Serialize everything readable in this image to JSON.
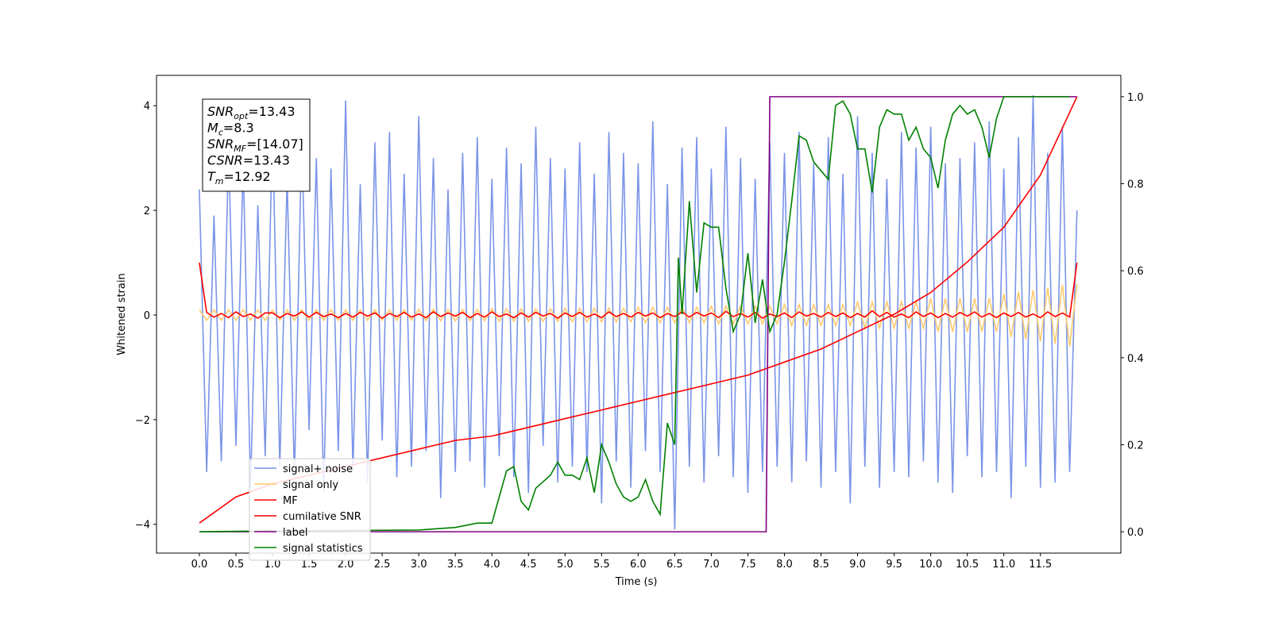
{
  "chart_data": {
    "type": "line",
    "xlabel": "Time (s)",
    "ylabel": "Whitened strain",
    "xlim": [
      -0.586,
      12.6
    ],
    "ylim": [
      -4.55,
      4.58
    ],
    "y2lim": [
      -0.049,
      1.049
    ],
    "xticks": [
      {
        "value": 0,
        "label": "0.0"
      },
      0.5,
      {
        "value": 1,
        "label": "1.0"
      },
      1.5,
      {
        "value": 2,
        "label": "2.0"
      },
      2.5,
      {
        "value": 3,
        "label": "3.0"
      },
      3.5,
      {
        "value": 4,
        "label": "4.0"
      },
      4.5,
      {
        "value": 5,
        "label": "5.0"
      },
      5.5,
      {
        "value": 6,
        "label": "6.0"
      },
      6.5,
      {
        "value": 7,
        "label": "7.0"
      },
      7.5,
      {
        "value": 8,
        "label": "8.0"
      },
      8.5,
      {
        "value": 9,
        "label": "9.0"
      },
      9.5,
      {
        "value": 10,
        "label": "10.0"
      },
      10.5,
      {
        "value": 11,
        "label": "11.0"
      },
      11.5
    ],
    "yticks": [
      {
        "value": -4,
        "label": "−4"
      },
      {
        "value": -2,
        "label": "−2"
      },
      0,
      2,
      4
    ],
    "y2ticks": [
      {
        "value": 0,
        "label": "0.0"
      },
      0.2,
      0.4,
      0.6,
      0.8,
      {
        "value": 1,
        "label": "1.0"
      }
    ],
    "legend": "lower left",
    "annotation": [
      {
        "base": "SNR",
        "sub": "opt",
        "rest": "=13.43"
      },
      {
        "base": "M",
        "sub": "c",
        "rest": "=8.3"
      },
      {
        "base": "SNR",
        "sub": "MF",
        "rest": "=[14.07]"
      },
      {
        "base": "CSNR",
        "rest": "=13.43"
      },
      {
        "base": "T",
        "sub": "m",
        "rest": "=12.92"
      }
    ],
    "x": [
      0,
      0.1,
      0.2,
      0.3,
      0.4,
      0.5,
      0.6,
      0.7,
      0.8,
      0.9,
      1,
      1.1,
      1.2,
      1.3,
      1.4,
      1.5,
      1.6,
      1.7,
      1.8,
      1.9,
      2,
      2.1,
      2.2,
      2.3,
      2.4,
      2.5,
      2.6,
      2.7,
      2.8,
      2.9,
      3,
      3.1,
      3.2,
      3.3,
      3.4,
      3.5,
      3.6,
      3.7,
      3.8,
      3.9,
      4,
      4.1,
      4.2,
      4.3,
      4.4,
      4.5,
      4.6,
      4.7,
      4.8,
      4.9,
      5,
      5.1,
      5.2,
      5.3,
      5.4,
      5.5,
      5.6,
      5.7,
      5.8,
      5.9,
      6,
      6.1,
      6.2,
      6.3,
      6.4,
      6.5,
      6.6,
      6.7,
      6.8,
      6.9,
      7,
      7.1,
      7.2,
      7.3,
      7.4,
      7.5,
      7.6,
      7.7,
      7.8,
      7.9,
      8,
      8.1,
      8.2,
      8.3,
      8.4,
      8.5,
      8.6,
      8.7,
      8.8,
      8.9,
      9,
      9.1,
      9.2,
      9.3,
      9.4,
      9.5,
      9.6,
      9.7,
      9.8,
      9.9,
      10,
      10.1,
      10.2,
      10.3,
      10.4,
      10.5,
      10.6,
      10.7,
      10.8,
      10.9,
      11,
      11.1,
      11.2,
      11.3,
      11.4,
      11.5,
      11.6,
      11.7,
      11.8,
      11.9,
      12
    ],
    "series": [
      {
        "name": "signal+ noise",
        "color": "#7a94e8",
        "values": [
          2.4,
          -3.0,
          1.9,
          -2.8,
          3.2,
          -2.5,
          2.9,
          -3.3,
          2.1,
          -2.7,
          3.6,
          -2.9,
          2.6,
          -3.1,
          3.4,
          -2.2,
          3.0,
          -3.4,
          2.8,
          -2.6,
          4.1,
          -3.0,
          2.5,
          -3.2,
          3.3,
          -2.4,
          3.5,
          -3.1,
          2.7,
          -2.9,
          3.8,
          -2.6,
          3.0,
          -3.5,
          2.4,
          -3.0,
          3.1,
          -2.8,
          3.4,
          -3.3,
          2.6,
          -2.7,
          3.2,
          -3.1,
          2.9,
          -3.4,
          3.6,
          -2.5,
          3.0,
          -3.2,
          2.8,
          -2.9,
          3.3,
          -3.0,
          2.7,
          -3.6,
          3.5,
          -2.8,
          3.1,
          -3.3,
          2.9,
          -2.6,
          3.7,
          -3.0,
          2.5,
          -4.1,
          3.2,
          -2.9,
          3.4,
          -3.2,
          2.8,
          -2.7,
          3.6,
          -3.1,
          3.0,
          -3.4,
          2.6,
          -3.0,
          3.3,
          -2.9,
          3.1,
          -3.2,
          3.5,
          -2.8,
          2.9,
          -3.3,
          3.4,
          -3.0,
          2.7,
          -3.6,
          3.8,
          -2.9,
          3.1,
          -3.3,
          2.6,
          -3.0,
          3.5,
          -3.1,
          3.2,
          -2.8,
          3.6,
          -3.2,
          2.9,
          -3.4,
          3.0,
          -2.7,
          3.3,
          -3.1,
          3.7,
          -3.0,
          2.8,
          -3.5,
          3.4,
          -2.9,
          4.2,
          -3.3,
          3.1,
          -3.2,
          3.6,
          -3.0,
          2.0
        ]
      },
      {
        "name": "signal only",
        "color": "#ffca6e",
        "values": [
          0.1,
          -0.1,
          0.1,
          -0.1,
          0.1,
          -0.1,
          0.1,
          -0.1,
          0.1,
          -0.1,
          0.1,
          -0.1,
          0.1,
          -0.1,
          0.1,
          -0.1,
          0.1,
          -0.1,
          0.1,
          -0.1,
          0.1,
          -0.1,
          0.1,
          -0.1,
          0.1,
          -0.1,
          0.1,
          -0.1,
          0.1,
          -0.1,
          0.11,
          -0.11,
          0.11,
          -0.11,
          0.11,
          -0.11,
          0.11,
          -0.11,
          0.11,
          -0.11,
          0.12,
          -0.12,
          0.12,
          -0.12,
          0.12,
          -0.12,
          0.12,
          -0.12,
          0.12,
          -0.12,
          0.13,
          -0.13,
          0.13,
          -0.13,
          0.13,
          -0.13,
          0.13,
          -0.13,
          0.13,
          -0.13,
          0.15,
          -0.15,
          0.15,
          -0.15,
          0.15,
          -0.15,
          0.15,
          -0.15,
          0.15,
          -0.15,
          0.17,
          -0.17,
          0.17,
          -0.17,
          0.17,
          -0.17,
          0.17,
          -0.17,
          0.17,
          -0.17,
          0.2,
          -0.2,
          0.2,
          -0.2,
          0.2,
          -0.2,
          0.2,
          -0.2,
          0.2,
          -0.2,
          0.25,
          -0.25,
          0.25,
          -0.25,
          0.25,
          -0.25,
          0.25,
          -0.25,
          0.25,
          -0.25,
          0.32,
          -0.32,
          0.32,
          -0.32,
          0.32,
          -0.32,
          0.32,
          -0.32,
          0.32,
          -0.32,
          0.4,
          -0.42,
          0.44,
          -0.46,
          0.48,
          -0.5,
          0.52,
          -0.55,
          0.58,
          -0.6,
          0.6
        ]
      },
      {
        "name": "MF",
        "color": "#ff0000",
        "values": [
          1.0,
          0.05,
          -0.04,
          0.03,
          -0.05,
          0.06,
          -0.03,
          0.02,
          -0.06,
          0.04,
          0.04,
          -0.05,
          0.03,
          -0.02,
          0.06,
          -0.04,
          0.05,
          -0.03,
          0.02,
          -0.05,
          0.03,
          -0.04,
          0.05,
          -0.02,
          0.04,
          -0.06,
          0.03,
          -0.03,
          0.05,
          -0.04,
          0.02,
          -0.05,
          0.06,
          -0.03,
          0.04,
          -0.02,
          0.05,
          -0.05,
          0.03,
          -0.04,
          0.06,
          -0.03,
          0.02,
          -0.05,
          0.04,
          -0.04,
          0.05,
          -0.02,
          0.03,
          -0.06,
          0.04,
          -0.03,
          0.05,
          -0.04,
          0.02,
          -0.05,
          0.06,
          -0.03,
          0.03,
          -0.04,
          0.05,
          -0.02,
          0.04,
          -0.05,
          0.03,
          -0.03,
          0.06,
          -0.04,
          0.05,
          -0.02,
          0.04,
          -0.05,
          0.07,
          -0.03,
          0.03,
          -0.04,
          0.05,
          -0.06,
          0.02,
          -0.03,
          0.04,
          -0.05,
          0.06,
          -0.02,
          0.03,
          -0.04,
          0.05,
          -0.03,
          0.04,
          -0.05,
          0.03,
          -0.04,
          0.08,
          -0.03,
          0.05,
          -0.04,
          0.02,
          -0.05,
          0.06,
          -0.03,
          0.04,
          -0.05,
          0.03,
          -0.04,
          0.05,
          -0.02,
          0.06,
          -0.04,
          0.03,
          -0.05,
          0.04,
          -0.03,
          0.05,
          -0.04,
          0.02,
          -0.05,
          0.06,
          -0.03,
          0.04,
          -0.04,
          1.0
        ]
      },
      {
        "name": "cumilative SNR",
        "color": "#ff0000",
        "axis": "y2",
        "x": [
          0,
          0.5,
          1,
          1.5,
          2,
          2.5,
          3,
          3.5,
          4,
          4.5,
          5,
          5.5,
          6,
          6.5,
          7,
          7.5,
          8,
          8.5,
          9,
          9.5,
          10,
          10.5,
          11,
          11.5,
          12
        ],
        "values": [
          0.02,
          0.08,
          0.11,
          0.13,
          0.15,
          0.17,
          0.19,
          0.21,
          0.22,
          0.24,
          0.26,
          0.28,
          0.3,
          0.32,
          0.34,
          0.36,
          0.39,
          0.42,
          0.46,
          0.5,
          0.55,
          0.62,
          0.7,
          0.82,
          1.0
        ]
      },
      {
        "name": "label",
        "color": "#800080",
        "axis": "y2",
        "x": [
          0,
          7.75,
          7.8,
          12
        ],
        "values": [
          0,
          0,
          1,
          1
        ]
      },
      {
        "name": "signal statistics",
        "color": "#008000",
        "axis": "y2",
        "x": [
          0,
          1,
          2,
          3,
          3.5,
          3.8,
          4.0,
          4.2,
          4.3,
          4.4,
          4.5,
          4.6,
          4.8,
          4.9,
          5.0,
          5.1,
          5.2,
          5.3,
          5.4,
          5.5,
          5.6,
          5.7,
          5.8,
          5.9,
          6.0,
          6.1,
          6.2,
          6.3,
          6.4,
          6.5,
          6.55,
          6.6,
          6.7,
          6.8,
          6.9,
          7.0,
          7.1,
          7.2,
          7.3,
          7.4,
          7.5,
          7.6,
          7.7,
          7.8,
          7.9,
          8.0,
          8.1,
          8.2,
          8.3,
          8.4,
          8.5,
          8.6,
          8.7,
          8.8,
          8.9,
          9.0,
          9.1,
          9.2,
          9.3,
          9.4,
          9.5,
          9.6,
          9.7,
          9.8,
          9.9,
          10.0,
          10.1,
          10.2,
          10.3,
          10.4,
          10.5,
          10.6,
          10.7,
          10.8,
          10.9,
          11.0,
          11.5,
          11.9
        ],
        "values": [
          0.0,
          0.002,
          0.003,
          0.004,
          0.01,
          0.02,
          0.02,
          0.14,
          0.15,
          0.07,
          0.05,
          0.1,
          0.13,
          0.16,
          0.13,
          0.13,
          0.12,
          0.17,
          0.09,
          0.2,
          0.16,
          0.11,
          0.08,
          0.07,
          0.08,
          0.12,
          0.07,
          0.04,
          0.25,
          0.2,
          0.63,
          0.5,
          0.76,
          0.55,
          0.71,
          0.7,
          0.7,
          0.56,
          0.46,
          0.5,
          0.64,
          0.48,
          0.58,
          0.46,
          0.5,
          0.62,
          0.76,
          0.91,
          0.9,
          0.85,
          0.83,
          0.81,
          0.98,
          0.99,
          0.96,
          0.88,
          0.88,
          0.78,
          0.93,
          0.97,
          0.96,
          0.96,
          0.9,
          0.93,
          0.88,
          0.86,
          0.79,
          0.9,
          0.96,
          0.98,
          0.96,
          0.97,
          0.93,
          0.86,
          0.95,
          1.0,
          1.0,
          1.0
        ]
      }
    ]
  }
}
